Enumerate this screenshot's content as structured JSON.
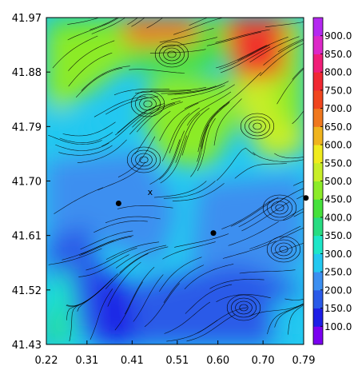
{
  "chart_data": {
    "type": "heatmap",
    "title": "",
    "xlabel": "",
    "ylabel": "",
    "xlim": [
      0.22,
      0.79
    ],
    "ylim": [
      41.43,
      41.97
    ],
    "x_ticks": [
      "0.22",
      "0.31",
      "0.41",
      "0.51",
      "0.60",
      "0.70",
      "0.79"
    ],
    "y_ticks": [
      "41.43",
      "41.52",
      "41.61",
      "41.70",
      "41.79",
      "41.88",
      "41.97"
    ],
    "colorbar": {
      "ticks": [
        "100.0",
        "150.0",
        "200.0",
        "250.0",
        "300.0",
        "350.0",
        "400.0",
        "450.0",
        "500.0",
        "550.0",
        "600.0",
        "650.0",
        "700.0",
        "750.0",
        "800.0",
        "850.0",
        "900.0"
      ],
      "colors": [
        "#7a00f0",
        "#1e1ee6",
        "#2a5ae8",
        "#3c8ff0",
        "#23c8f0",
        "#1ee6c8",
        "#28dc82",
        "#46e13c",
        "#8ceb28",
        "#c8ee28",
        "#f0eb1e",
        "#f0b41e",
        "#f0781e",
        "#f0461e",
        "#f02832",
        "#f01e78",
        "#dc28c8",
        "#b428f0"
      ]
    },
    "markers": [
      {
        "x": 0.38,
        "y": 41.663
      },
      {
        "x": 0.59,
        "y": 41.614
      },
      {
        "x": 0.795,
        "y": 41.672
      }
    ],
    "cross_marker": {
      "x": 0.45,
      "y": 41.682,
      "symbol": "x"
    }
  }
}
